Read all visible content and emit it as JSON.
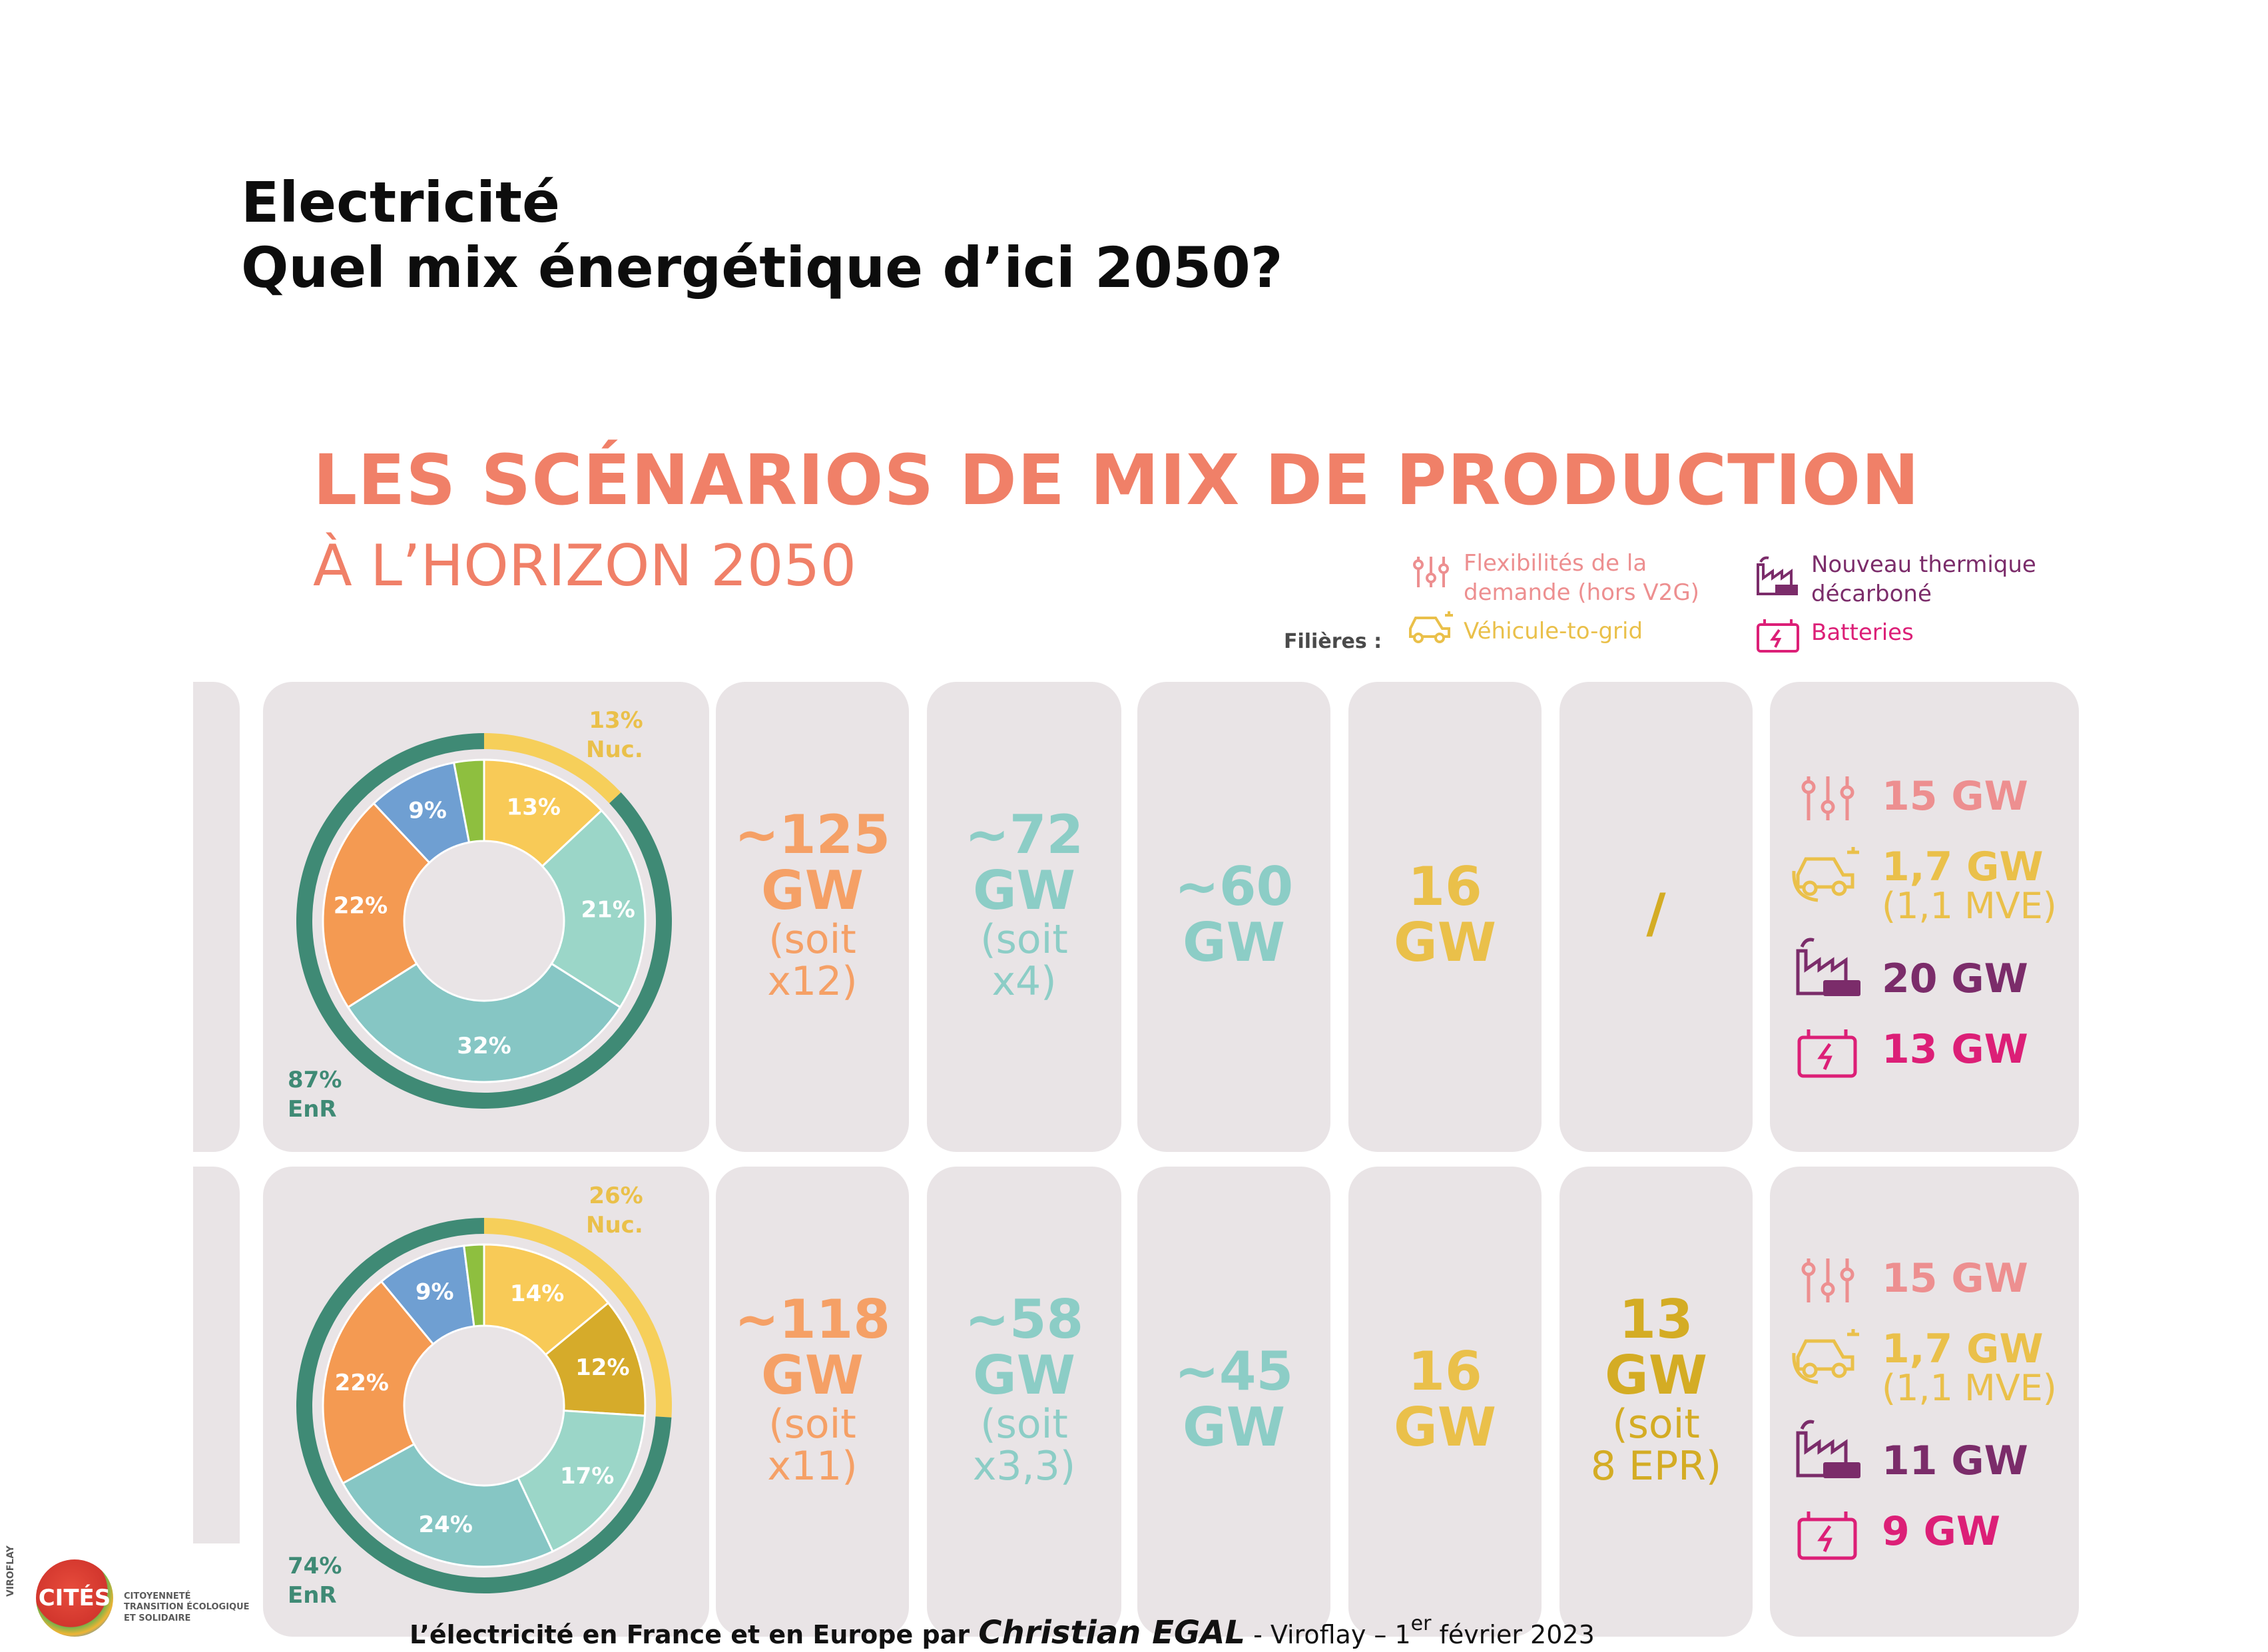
{
  "slide": {
    "title_line1": "Electricité",
    "title_line2": "Quel mix énergétique d’ici 2050?"
  },
  "infographic": {
    "title": "LES SCÉNARIOS DE MIX DE PRODUCTION",
    "subtitle": "À L’HORIZON 2050",
    "legend_prefix": "Filières :",
    "legend": {
      "flexibility_line1": "Flexibilités de la",
      "flexibility_line2": "demande (hors V2G)",
      "v2g": "Véhicule-to-grid",
      "thermal_line1": "Nouveau thermique",
      "thermal_line2": "décarboné",
      "batteries": "Batteries"
    },
    "colors": {
      "salmon": "#f08068",
      "orange": "#f5a066",
      "teal": "#8ccdc6",
      "yellow": "#eac04a",
      "gold": "#d4ac24",
      "pink": "#ed8f90",
      "purple": "#7b2c6a",
      "magenta": "#dc1f77",
      "panel": "#e9e4e6",
      "ring": "#3f8a75"
    },
    "rows": [
      {
        "nuc_pct": "13%",
        "nuc_label": "Nuc.",
        "enr_pct": "87%",
        "enr_label": "EnR",
        "donut": [
          {
            "label": "13%",
            "value": 13,
            "color": "#f8ca57"
          },
          {
            "label": "21%",
            "value": 21,
            "color": "#9bd6c8"
          },
          {
            "label": "32%",
            "value": 32,
            "color": "#86c6c4"
          },
          {
            "label": "22%",
            "value": 22,
            "color": "#f49a52"
          },
          {
            "label": "9%",
            "value": 9,
            "color": "#6f9fd2"
          },
          {
            "label": "",
            "value": 3,
            "color": "#8ebf3f"
          }
        ],
        "solar_prefix": "~",
        "solar_value": "125",
        "solar_unit": "GW",
        "solar_note1": "(soit",
        "solar_note2": "x12)",
        "onshore_prefix": "~",
        "onshore_value": "72",
        "onshore_unit": "GW",
        "onshore_note1": "(soit",
        "onshore_note2": "x4)",
        "offshore_prefix": "~",
        "offshore_value": "60",
        "offshore_unit": "GW",
        "hydro_value": "16",
        "hydro_unit": "GW",
        "nuclear_value": "/",
        "flexibility": "15 GW",
        "v2g": "1,7 GW",
        "v2g_note": "(1,1 MVE)",
        "thermal": "20 GW",
        "batteries": "13 GW"
      },
      {
        "nuc_pct": "26%",
        "nuc_label": "Nuc.",
        "enr_pct": "74%",
        "enr_label": "EnR",
        "donut": [
          {
            "label": "14%",
            "value": 14,
            "color": "#f8ca57"
          },
          {
            "label": "12%",
            "value": 12,
            "color": "#d6ab2a"
          },
          {
            "label": "17%",
            "value": 17,
            "color": "#9bd6c8"
          },
          {
            "label": "24%",
            "value": 24,
            "color": "#86c6c4"
          },
          {
            "label": "22%",
            "value": 22,
            "color": "#f49a52"
          },
          {
            "label": "9%",
            "value": 9,
            "color": "#6f9fd2"
          },
          {
            "label": "",
            "value": 2,
            "color": "#8ebf3f"
          }
        ],
        "solar_prefix": "~",
        "solar_value": "118",
        "solar_unit": "GW",
        "solar_note1": "(soit",
        "solar_note2": "x11)",
        "onshore_prefix": "~",
        "onshore_value": "58",
        "onshore_unit": "GW",
        "onshore_note1": "(soit",
        "onshore_note2": "x3,3)",
        "offshore_prefix": "~",
        "offshore_value": "45",
        "offshore_unit": "GW",
        "hydro_value": "16",
        "hydro_unit": "GW",
        "nuclear_value": "13",
        "nuclear_unit": "GW",
        "nuclear_note1": "(soit",
        "nuclear_note2": "8 EPR)",
        "flexibility": "15 GW",
        "v2g": "1,7 GW",
        "v2g_note": "(1,1 MVE)",
        "thermal": "11 GW",
        "batteries": "9 GW"
      }
    ]
  },
  "footer": {
    "part1": "L’électricité en France et en Europe par ",
    "author": "Christian EGAL",
    "part2": " - Viroflay – 1",
    "sup": "er",
    "part3": " février 2023"
  },
  "logo": {
    "name": "CITÉS",
    "line1": "CITOYENNETÉ",
    "line2": "TRANSITION ÉCOLOGIQUE",
    "line3": "ET SOLIDAIRE",
    "vertical": "VIROFLAY"
  }
}
